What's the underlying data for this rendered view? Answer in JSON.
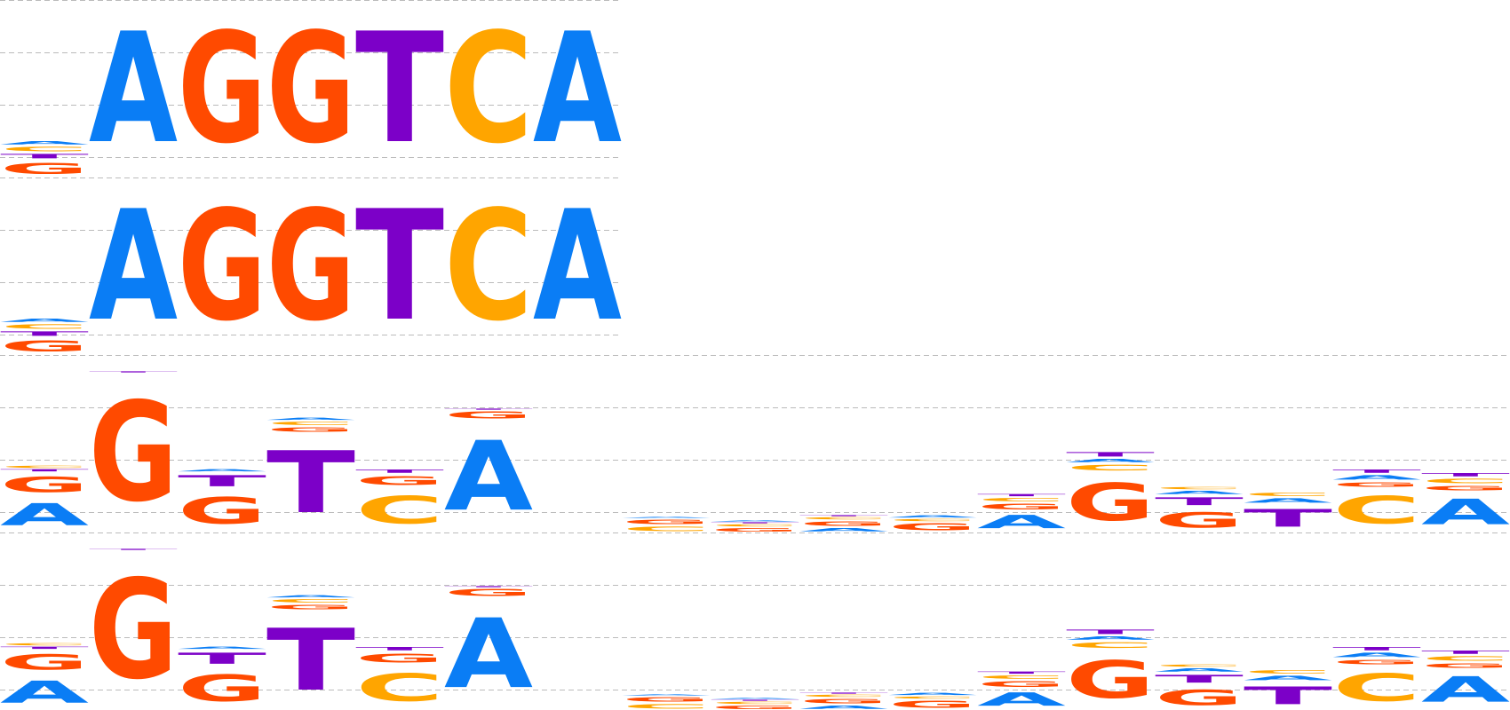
{
  "colors": {
    "A": "#0a7df5",
    "C": "#ffa500",
    "G": "#ff4a00",
    "T": "#7c00c8",
    "grid": "#bbbbbb"
  },
  "panels": [
    {
      "name": "logo-row-1",
      "columns": [
        [
          [
            "A",
            0.03
          ],
          [
            "C",
            0.04
          ],
          [
            "T",
            0.04
          ],
          [
            "G",
            0.1
          ]
        ],
        [
          [
            "A",
            1.0
          ]
        ],
        [
          [
            "G",
            1.0
          ]
        ],
        [
          [
            "G",
            1.0
          ]
        ],
        [
          [
            "T",
            1.0
          ]
        ],
        [
          [
            "C",
            1.0
          ]
        ],
        [
          [
            "A",
            1.0
          ]
        ]
      ]
    },
    {
      "name": "logo-row-2",
      "columns": [
        [
          [
            "A",
            0.03
          ],
          [
            "C",
            0.04
          ],
          [
            "T",
            0.04
          ],
          [
            "G",
            0.1
          ]
        ],
        [
          [
            "A",
            1.0
          ]
        ],
        [
          [
            "G",
            1.0
          ]
        ],
        [
          [
            "G",
            1.0
          ]
        ],
        [
          [
            "T",
            1.0
          ]
        ],
        [
          [
            "C",
            1.0
          ]
        ],
        [
          [
            "A",
            1.0
          ]
        ]
      ]
    },
    {
      "name": "logo-row-3",
      "columns": [
        [
          [
            "C",
            0.02
          ],
          [
            "T",
            0.02
          ],
          [
            "G",
            0.14
          ],
          [
            "A",
            0.2
          ]
        ],
        [
          [
            "T",
            0.01
          ],
          [
            "G",
            0.9
          ]
        ],
        [
          [
            "A",
            0.02
          ],
          [
            "T",
            0.1
          ],
          [
            "G",
            0.24
          ]
        ],
        [
          [
            "A",
            0.02
          ],
          [
            "C",
            0.03
          ],
          [
            "G",
            0.04
          ],
          [
            "T",
            0.56
          ]
        ],
        [
          [
            "T",
            0.03
          ],
          [
            "G",
            0.08
          ],
          [
            "C",
            0.25
          ]
        ],
        [
          [
            "T",
            0.01
          ],
          [
            "G",
            0.06
          ],
          [
            "A",
            0.63
          ]
        ],
        [],
        [
          [
            "A",
            0.01
          ],
          [
            "G",
            0.04
          ],
          [
            "C",
            0.04
          ]
        ],
        [
          [
            "A",
            0.01
          ],
          [
            "T",
            0.01
          ],
          [
            "C",
            0.02
          ],
          [
            "G",
            0.03
          ]
        ],
        [
          [
            "T",
            0.01
          ],
          [
            "C",
            0.02
          ],
          [
            "G",
            0.04
          ],
          [
            "A",
            0.03
          ]
        ],
        [
          [
            "A",
            0.02
          ],
          [
            "C",
            0.02
          ],
          [
            "G",
            0.06
          ]
        ],
        [
          [
            "T",
            0.02
          ],
          [
            "C",
            0.03
          ],
          [
            "G",
            0.05
          ],
          [
            "A",
            0.12
          ]
        ],
        [
          [
            "T",
            0.04
          ],
          [
            "A",
            0.03
          ],
          [
            "C",
            0.05
          ],
          [
            "G",
            0.34
          ]
        ],
        [
          [
            "C",
            0.02
          ],
          [
            "A",
            0.03
          ],
          [
            "T",
            0.07
          ],
          [
            "G",
            0.14
          ]
        ],
        [
          [
            "C",
            0.03
          ],
          [
            "A",
            0.04
          ],
          [
            "T",
            0.16
          ]
        ],
        [
          [
            "T",
            0.03
          ],
          [
            "A",
            0.04
          ],
          [
            "G",
            0.04
          ],
          [
            "C",
            0.25
          ]
        ],
        [
          [
            "T",
            0.03
          ],
          [
            "C",
            0.04
          ],
          [
            "G",
            0.04
          ],
          [
            "A",
            0.23
          ]
        ]
      ]
    },
    {
      "name": "logo-row-4",
      "columns": [
        [
          [
            "C",
            0.02
          ],
          [
            "T",
            0.02
          ],
          [
            "G",
            0.14
          ],
          [
            "A",
            0.2
          ]
        ],
        [
          [
            "T",
            0.01
          ],
          [
            "G",
            0.9
          ]
        ],
        [
          [
            "A",
            0.02
          ],
          [
            "T",
            0.1
          ],
          [
            "G",
            0.24
          ]
        ],
        [
          [
            "A",
            0.02
          ],
          [
            "C",
            0.03
          ],
          [
            "G",
            0.04
          ],
          [
            "T",
            0.56
          ]
        ],
        [
          [
            "T",
            0.03
          ],
          [
            "G",
            0.08
          ],
          [
            "C",
            0.25
          ]
        ],
        [
          [
            "T",
            0.01
          ],
          [
            "G",
            0.06
          ],
          [
            "A",
            0.63
          ]
        ],
        [],
        [
          [
            "A",
            0.01
          ],
          [
            "G",
            0.04
          ],
          [
            "C",
            0.04
          ]
        ],
        [
          [
            "A",
            0.01
          ],
          [
            "T",
            0.01
          ],
          [
            "C",
            0.02
          ],
          [
            "G",
            0.03
          ]
        ],
        [
          [
            "T",
            0.01
          ],
          [
            "C",
            0.02
          ],
          [
            "G",
            0.04
          ],
          [
            "A",
            0.03
          ]
        ],
        [
          [
            "A",
            0.02
          ],
          [
            "C",
            0.02
          ],
          [
            "G",
            0.06
          ]
        ],
        [
          [
            "T",
            0.02
          ],
          [
            "C",
            0.03
          ],
          [
            "G",
            0.05
          ],
          [
            "A",
            0.12
          ]
        ],
        [
          [
            "T",
            0.04
          ],
          [
            "A",
            0.03
          ],
          [
            "C",
            0.05
          ],
          [
            "G",
            0.34
          ]
        ],
        [
          [
            "C",
            0.02
          ],
          [
            "A",
            0.03
          ],
          [
            "T",
            0.07
          ],
          [
            "G",
            0.14
          ]
        ],
        [
          [
            "C",
            0.03
          ],
          [
            "A",
            0.04
          ],
          [
            "T",
            0.16
          ]
        ],
        [
          [
            "T",
            0.03
          ],
          [
            "A",
            0.04
          ],
          [
            "G",
            0.04
          ],
          [
            "C",
            0.25
          ]
        ],
        [
          [
            "T",
            0.03
          ],
          [
            "C",
            0.04
          ],
          [
            "G",
            0.04
          ],
          [
            "A",
            0.23
          ]
        ]
      ]
    }
  ]
}
